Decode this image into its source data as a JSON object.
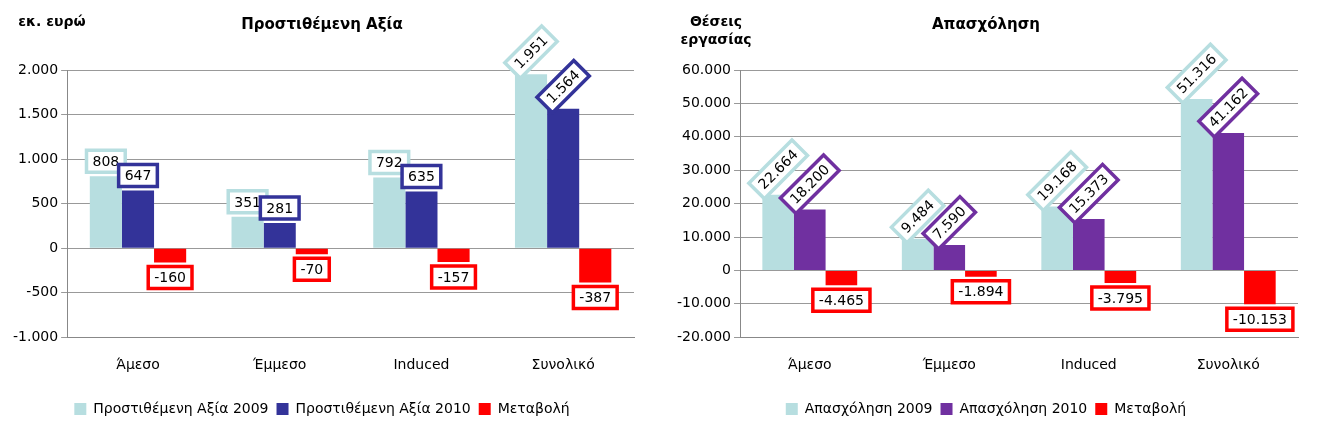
{
  "chart_data": [
    {
      "type": "bar",
      "title": "Προστιθέμενη Αξία",
      "ylabel": "εκ. ευρώ",
      "categories": [
        "Άμεσο",
        "Έμμεσο",
        "Induced",
        "Συνολικό"
      ],
      "series": [
        {
          "name": "Προστιθέμενη Αξία 2009",
          "color": "#b7dee0",
          "values": [
            808,
            351,
            792,
            1951
          ],
          "value_labels": [
            "808",
            "351",
            "792",
            "1.951"
          ]
        },
        {
          "name": "Προστιθέμενη Αξία 2010",
          "color": "#333399",
          "values": [
            647,
            281,
            635,
            1564
          ],
          "value_labels": [
            "647",
            "281",
            "635",
            "1.564"
          ]
        },
        {
          "name": "Μεταβολή",
          "color": "#ff0000",
          "values": [
            -160,
            -70,
            -157,
            -387
          ],
          "value_labels": [
            "-160",
            "-70",
            "-157",
            "-387"
          ]
        }
      ],
      "ylim": [
        -1000,
        2000
      ],
      "yticks": [
        {
          "value": -1000,
          "label": "-1.000"
        },
        {
          "value": -500,
          "label": "-500"
        },
        0,
        {
          "value": 500,
          "label": "500"
        },
        {
          "value": 1000,
          "label": "1.000"
        },
        {
          "value": 1500,
          "label": "1.500"
        },
        {
          "value": 2000,
          "label": "2.000"
        }
      ],
      "grid": "y",
      "legend": "bottom"
    },
    {
      "type": "bar",
      "title": "Απασχόληση",
      "ylabel": "Θέσεις εργασίας",
      "categories": [
        "Άμεσο",
        "Έμμεσο",
        "Induced",
        "Συνολικό"
      ],
      "series": [
        {
          "name": "Απασχόληση 2009",
          "color": "#b7dee0",
          "values": [
            22664,
            9484,
            19168,
            51316
          ],
          "value_labels": [
            "22.664",
            "9.484",
            "19.168",
            "51.316"
          ]
        },
        {
          "name": "Απασχόληση 2010",
          "color": "#7030a0",
          "values": [
            18200,
            7590,
            15373,
            41162
          ],
          "value_labels": [
            "18.200",
            "7.590",
            "15.373",
            "41.162"
          ]
        },
        {
          "name": "Μεταβολή",
          "color": "#ff0000",
          "values": [
            -4465,
            -1894,
            -3795,
            -10153
          ],
          "value_labels": [
            "-4.465",
            "-1.894",
            "-3.795",
            "-10.153"
          ]
        }
      ],
      "ylim": [
        -20000,
        60000
      ],
      "yticks": [
        {
          "value": -20000,
          "label": "-20.000"
        },
        {
          "value": -10000,
          "label": "-10.000"
        },
        0,
        {
          "value": 10000,
          "label": "10.000"
        },
        {
          "value": 20000,
          "label": "20.000"
        },
        {
          "value": 30000,
          "label": "30.000"
        },
        {
          "value": 40000,
          "label": "40.000"
        },
        {
          "value": 50000,
          "label": "50.000"
        },
        {
          "value": 60000,
          "label": "60.000"
        }
      ],
      "grid": "y",
      "legend": "bottom"
    }
  ]
}
